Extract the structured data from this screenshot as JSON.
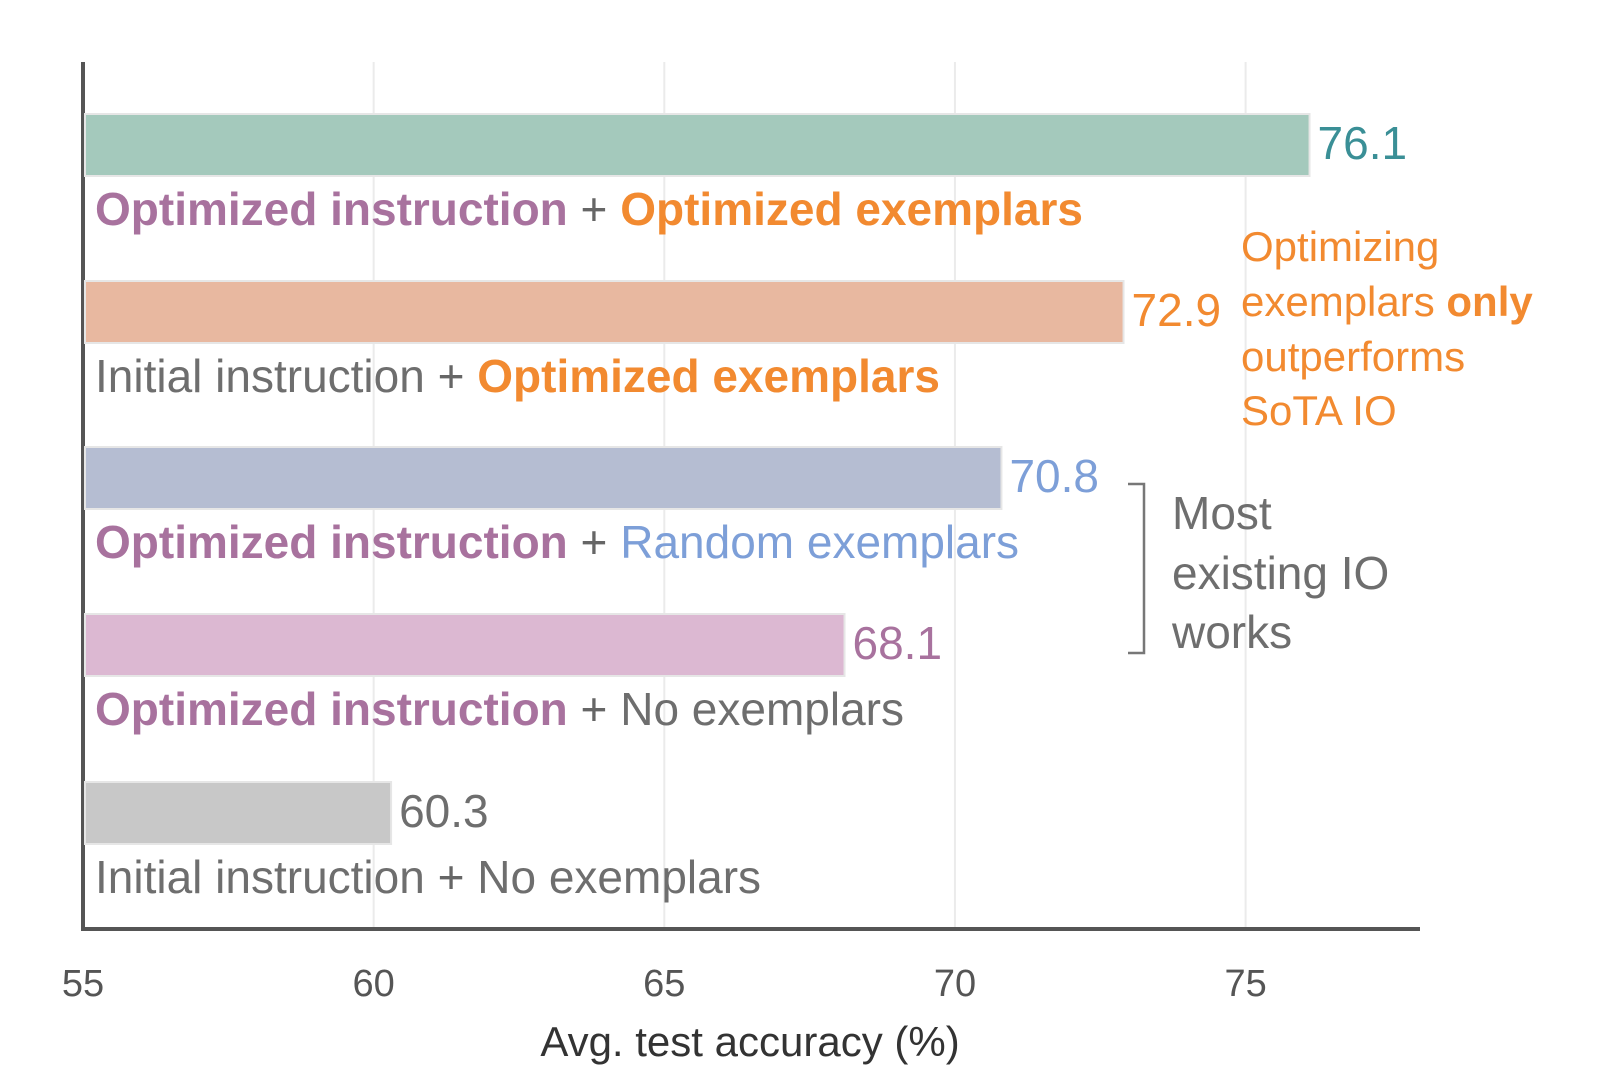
{
  "chart_data": {
    "type": "bar",
    "orientation": "horizontal",
    "x_label": "Avg. test accuracy (%)",
    "categories": [
      [
        "Optimized instruction",
        " + ",
        "Optimized exemplars"
      ],
      [
        "Initial instruction",
        " + ",
        "Optimized exemplars"
      ],
      [
        "Optimized instruction",
        " + ",
        "Random exemplars"
      ],
      [
        "Optimized instruction",
        " + ",
        "No exemplars"
      ],
      [
        "Initial instruction",
        " + ",
        "No exemplars"
      ]
    ],
    "category_styles": [
      [
        {
          "color": "#a8729e",
          "bold": true
        },
        {
          "color": "#666666",
          "bold": false
        },
        {
          "color": "#f28a30",
          "bold": true
        }
      ],
      [
        {
          "color": "#6e6e6e",
          "bold": false
        },
        {
          "color": "#666666",
          "bold": false
        },
        {
          "color": "#f28a30",
          "bold": true
        }
      ],
      [
        {
          "color": "#a8729e",
          "bold": true
        },
        {
          "color": "#666666",
          "bold": false
        },
        {
          "color": "#7d9fd8",
          "bold": false
        }
      ],
      [
        {
          "color": "#a8729e",
          "bold": true
        },
        {
          "color": "#666666",
          "bold": false
        },
        {
          "color": "#6e6e6e",
          "bold": false
        }
      ],
      [
        {
          "color": "#6e6e6e",
          "bold": false
        },
        {
          "color": "#666666",
          "bold": false
        },
        {
          "color": "#6e6e6e",
          "bold": false
        }
      ]
    ],
    "values": [
      76.1,
      72.9,
      70.8,
      68.1,
      60.3
    ],
    "colors": [
      "#a4c9bc",
      "#e8b8a0",
      "#b5bdd2",
      "#dcb8d2",
      "#c8c8c8"
    ],
    "value_label_colors": [
      "#3a8f96",
      "#f28a30",
      "#7d9fd8",
      "#a8729e",
      "#6e6e6e"
    ],
    "xlim": [
      55,
      78
    ],
    "xticks": [
      55,
      60,
      65,
      70,
      75
    ],
    "grid": true,
    "annotations": [
      {
        "color": "#f28a30",
        "lines": [
          [
            "Optimizing"
          ],
          [
            "exemplars ",
            "only"
          ],
          [
            "outperforms"
          ],
          [
            "SoTA IO"
          ]
        ],
        "bold": [
          [
            false
          ],
          [
            false,
            true
          ],
          [
            false
          ],
          [
            false
          ]
        ]
      },
      {
        "color": "#6e6e6e",
        "lines": [
          [
            "Most"
          ],
          [
            "existing IO"
          ],
          [
            "works"
          ]
        ],
        "bold": [
          [
            false
          ],
          [
            false
          ],
          [
            false
          ]
        ]
      }
    ]
  }
}
